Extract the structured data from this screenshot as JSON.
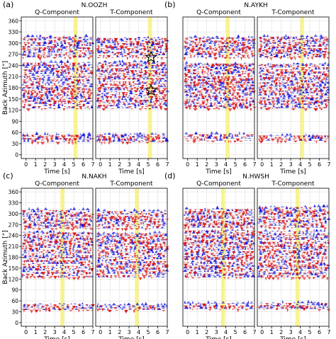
{
  "chart_data": [
    {
      "type": "heatmap",
      "panel_letter": "(a)",
      "station": "N.OOZH",
      "components": [
        "Q-Component",
        "T-Component"
      ],
      "xlabel": "Time [s]",
      "ylabel": "Back Azimuth [°]",
      "xlim": [
        -0.5,
        7
      ],
      "ylim": [
        -10,
        370
      ],
      "xticks": [
        0,
        1,
        2,
        3,
        4,
        5,
        6,
        7
      ],
      "yticks": [
        0,
        30,
        60,
        90,
        120,
        150,
        180,
        210,
        240,
        270,
        300,
        330,
        360
      ],
      "highlight_window_s": [
        5.0,
        5.4
      ],
      "data_bands_deg": [
        [
          35,
          55
        ],
        [
          125,
          250
        ],
        [
          262,
          318
        ]
      ],
      "star_markers": [
        {
          "component": "T-Component",
          "time_s": 5.3,
          "back_azimuth_deg": 262
        },
        {
          "component": "T-Component",
          "time_s": 5.3,
          "back_azimuth_deg": 173
        }
      ]
    },
    {
      "type": "heatmap",
      "panel_letter": "(b)",
      "station": "N.AYKH",
      "components": [
        "Q-Component",
        "T-Component"
      ],
      "xlabel": "Time [s]",
      "ylabel": "",
      "xlim": [
        -0.5,
        7
      ],
      "ylim": [
        -10,
        370
      ],
      "xticks": [
        0,
        1,
        2,
        3,
        4,
        5,
        6,
        7
      ],
      "yticks": [],
      "highlight_window_s": [
        4.0,
        4.4
      ],
      "data_bands_deg": [
        [
          38,
          55
        ],
        [
          125,
          245
        ],
        [
          262,
          318
        ]
      ],
      "star_markers": []
    },
    {
      "type": "heatmap",
      "panel_letter": "(c)",
      "station": "N.NAKH",
      "components": [
        "Q-Component",
        "T-Component"
      ],
      "xlabel": "Time [s]",
      "ylabel": "Back Azimuth [°]",
      "xlim": [
        -0.5,
        7
      ],
      "ylim": [
        -10,
        370
      ],
      "xticks": [
        0,
        1,
        2,
        3,
        4,
        5,
        6,
        7
      ],
      "yticks": [
        0,
        30,
        60,
        90,
        120,
        150,
        180,
        210,
        240,
        270,
        300,
        330,
        360
      ],
      "highlight_window_s": [
        3.6,
        4.0
      ],
      "data_bands_deg": [
        [
          35,
          52
        ],
        [
          125,
          250
        ],
        [
          260,
          310
        ]
      ],
      "star_markers": []
    },
    {
      "type": "heatmap",
      "panel_letter": "(d)",
      "station": "N.HWSH",
      "components": [
        "Q-Component",
        "T-Component"
      ],
      "xlabel": "Time [s]",
      "ylabel": "",
      "xlim": [
        -0.5,
        7
      ],
      "ylim": [
        -10,
        370
      ],
      "xticks": [
        0,
        1,
        2,
        3,
        4,
        5,
        6,
        7
      ],
      "yticks": [],
      "highlight_window_s": [
        3.5,
        3.9
      ],
      "data_bands_deg": [
        [
          38,
          55
        ],
        [
          125,
          255
        ],
        [
          262,
          318
        ]
      ],
      "star_markers": []
    }
  ]
}
